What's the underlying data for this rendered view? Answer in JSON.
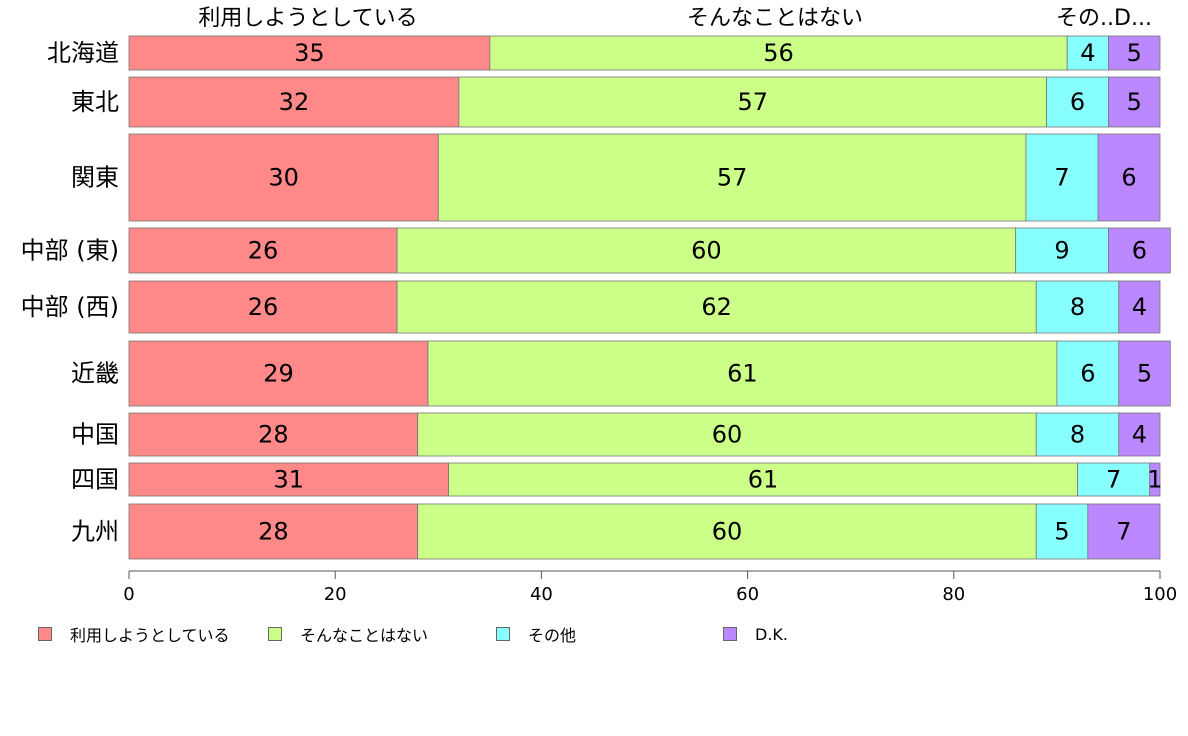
{
  "chart_data": {
    "type": "bar",
    "orientation": "horizontal",
    "stacked": true,
    "categories": [
      "北海道",
      "東北",
      "関東",
      "中部 (東)",
      "中部 (西)",
      "近畿",
      "中国",
      "四国",
      "九州"
    ],
    "series": [
      {
        "name": "利用しようとしている",
        "color": "#FF8888",
        "values": [
          35,
          32,
          30,
          26,
          26,
          29,
          28,
          31,
          28
        ]
      },
      {
        "name": "そんなことはない",
        "color": "#CCFF88",
        "values": [
          56,
          57,
          57,
          60,
          62,
          61,
          60,
          61,
          60
        ]
      },
      {
        "name": "その他",
        "color": "#88FFFF",
        "values": [
          4,
          6,
          7,
          9,
          8,
          6,
          8,
          7,
          5
        ]
      },
      {
        "name": "D.K.",
        "color": "#BB88FF",
        "values": [
          5,
          5,
          6,
          6,
          4,
          5,
          4,
          1,
          7
        ]
      }
    ],
    "top_labels": [
      "利用しようとしている",
      "そんなことはない",
      "その..D..."
    ],
    "xlim": [
      0,
      100
    ],
    "xticks": [
      "0",
      "20",
      "40",
      "60",
      "80",
      "100"
    ],
    "grid": false,
    "legend_position": "bottom"
  }
}
